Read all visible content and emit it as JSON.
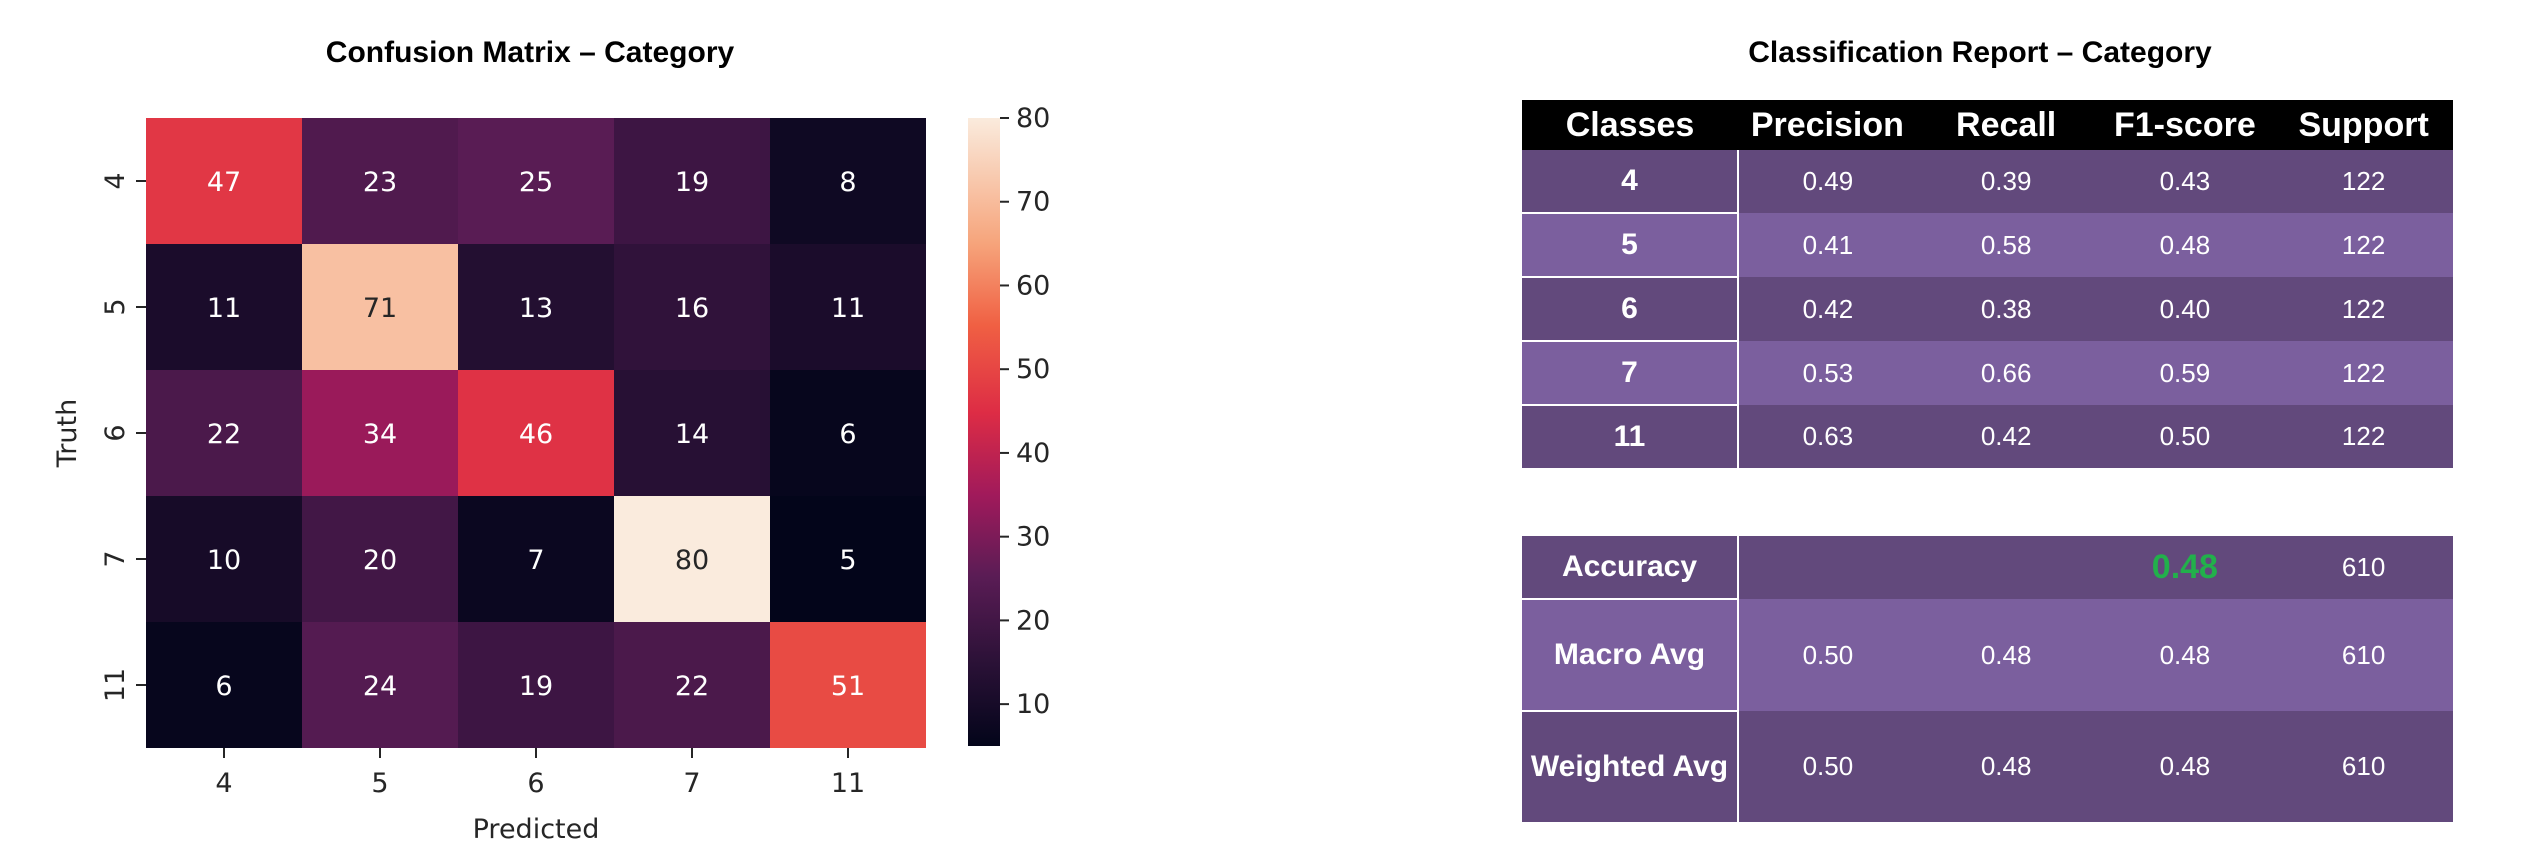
{
  "confusion_matrix": {
    "title": "Confusion Matrix – Category",
    "chart_data": {
      "type": "heatmap",
      "title": "Confusion Matrix – Category",
      "xlabel": "Predicted",
      "ylabel": "Truth",
      "x_categories": [
        "4",
        "5",
        "6",
        "7",
        "11"
      ],
      "y_categories": [
        "4",
        "5",
        "6",
        "7",
        "11"
      ],
      "values": [
        [
          47,
          23,
          25,
          19,
          8
        ],
        [
          11,
          71,
          13,
          16,
          11
        ],
        [
          22,
          34,
          46,
          14,
          6
        ],
        [
          10,
          20,
          7,
          80,
          5
        ],
        [
          6,
          24,
          19,
          22,
          51
        ]
      ],
      "colorbar_ticks": [
        10,
        20,
        30,
        40,
        50,
        60,
        70,
        80
      ],
      "colorbar_range": [
        5,
        80
      ],
      "colormap": "rocket"
    }
  },
  "report": {
    "title": "Classification Report – Category",
    "headers": [
      "Classes",
      "Precision",
      "Recall",
      "F1-score",
      "Support"
    ],
    "rows": [
      {
        "label": "4",
        "precision": "0.49",
        "recall": "0.39",
        "f1": "0.43",
        "support": "122"
      },
      {
        "label": "5",
        "precision": "0.41",
        "recall": "0.58",
        "f1": "0.48",
        "support": "122"
      },
      {
        "label": "6",
        "precision": "0.42",
        "recall": "0.38",
        "f1": "0.40",
        "support": "122"
      },
      {
        "label": "7",
        "precision": "0.53",
        "recall": "0.66",
        "f1": "0.59",
        "support": "122"
      },
      {
        "label": "11",
        "precision": "0.63",
        "recall": "0.42",
        "f1": "0.50",
        "support": "122"
      }
    ],
    "summary": {
      "accuracy": {
        "label": "Accuracy",
        "f1": "0.48",
        "support": "610"
      },
      "macro": {
        "label": "Macro Avg",
        "precision": "0.50",
        "recall": "0.48",
        "f1": "0.48",
        "support": "610"
      },
      "weighted": {
        "label": "Weighted Avg",
        "precision": "0.50",
        "recall": "0.48",
        "f1": "0.48",
        "support": "610"
      }
    },
    "colors": {
      "header_bg": "#000000",
      "row_dark": "#62497c",
      "row_light": "#7b5f9e",
      "highlight": "#22b04b"
    }
  }
}
